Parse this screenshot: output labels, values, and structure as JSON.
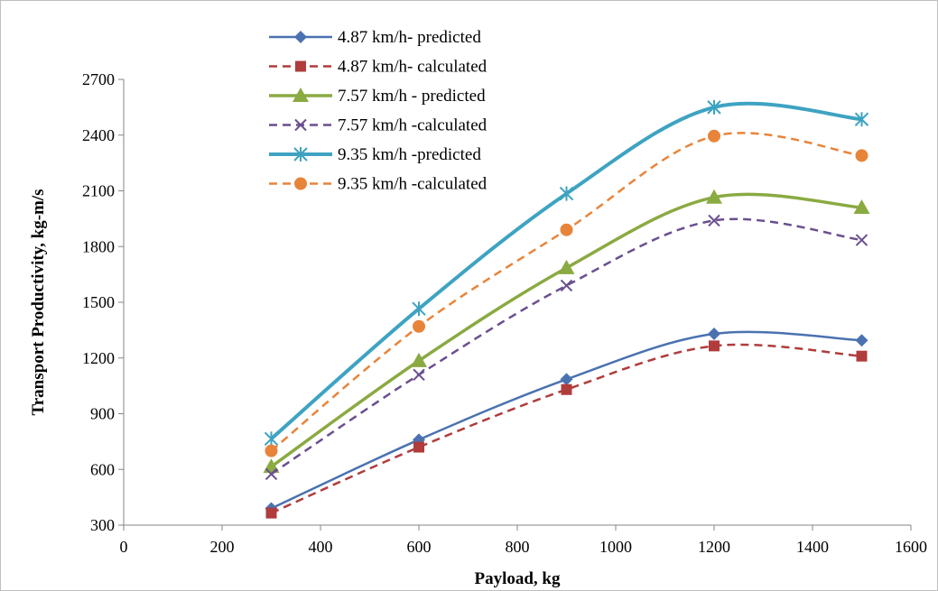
{
  "chart_data": {
    "type": "line",
    "title": "",
    "xlabel": "Payload, kg",
    "ylabel": "Transport Productivity, kg-m/s",
    "xlim": [
      0,
      1600
    ],
    "ylim": [
      300,
      2700
    ],
    "x_ticks": [
      "0",
      "200",
      "400",
      "600",
      "800",
      "1000",
      "1200",
      "1400",
      "1600"
    ],
    "y_ticks": [
      "300",
      "600",
      "900",
      "1200",
      "1500",
      "1800",
      "2100",
      "2400",
      "2700"
    ],
    "grid": false,
    "legend_position": "top-left",
    "x": [
      300,
      600,
      900,
      1200,
      1500
    ],
    "series": [
      {
        "name": "4.87 km/h- predicted",
        "values": [
          390,
          760,
          1085,
          1330,
          1295
        ],
        "color": "#4a72b0",
        "dash": "solid",
        "marker": "diamond",
        "width": 2.5
      },
      {
        "name": "4.87 km/h- calculated",
        "values": [
          365,
          720,
          1030,
          1265,
          1210
        ],
        "color": "#b03c3c",
        "dash": "dashed",
        "marker": "square",
        "width": 2.5
      },
      {
        "name": "7.57 km/h - predicted",
        "values": [
          615,
          1185,
          1685,
          2065,
          2010
        ],
        "color": "#8aaa42",
        "dash": "solid",
        "marker": "triangle",
        "width": 3.5
      },
      {
        "name": "7.57 km/h -calculated",
        "values": [
          575,
          1110,
          1590,
          1940,
          1835
        ],
        "color": "#6a4f8f",
        "dash": "dashed",
        "marker": "x",
        "width": 2.5
      },
      {
        "name": "9.35 km/h -predicted",
        "values": [
          765,
          1465,
          2085,
          2550,
          2485
        ],
        "color": "#3ea3c2",
        "dash": "solid",
        "marker": "asterisk",
        "width": 4
      },
      {
        "name": "9.35 km/h -calculated",
        "values": [
          700,
          1370,
          1890,
          2395,
          2290
        ],
        "color": "#e8843a",
        "dash": "dashed",
        "marker": "circle",
        "width": 2.5
      }
    ]
  }
}
